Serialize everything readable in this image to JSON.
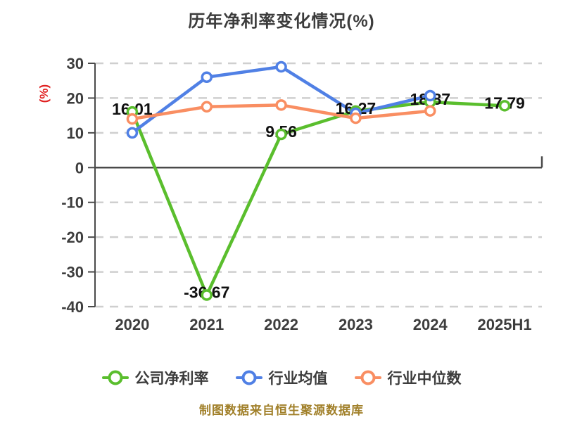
{
  "title": "历年净利率变化情况(%)",
  "y_axis_label": "(%)",
  "footer": "制图数据来自恒生聚源数据库",
  "colors": {
    "background": "#ffffff",
    "title": "#3c3c3c",
    "axis": "#4a4a4a",
    "tick_label": "#3d3d3d",
    "grid": "#cfcfcf",
    "y_axis_label": "#e02121",
    "point_label": "#111111",
    "legend_label": "#3c3c3c",
    "footer": "#a1802a"
  },
  "chart_data": {
    "type": "line",
    "title": "历年净利率变化情况(%)",
    "categories": [
      "2020",
      "2021",
      "2022",
      "2023",
      "2024",
      "2025H1"
    ],
    "series": [
      {
        "name": "公司净利率",
        "slug": "company-net-margin",
        "color": "#5abe2d",
        "values": [
          16.01,
          -36.67,
          9.56,
          16.27,
          18.87,
          17.79
        ],
        "point_labels": [
          "16.01",
          "-36.67",
          "9.56",
          "16.27",
          "18.87",
          "17.79"
        ]
      },
      {
        "name": "行业均值",
        "slug": "industry-average",
        "color": "#5080e5",
        "values": [
          10,
          26,
          29,
          15.6,
          20.7,
          null
        ],
        "point_labels": []
      },
      {
        "name": "行业中位数",
        "slug": "industry-median",
        "color": "#f98e62",
        "values": [
          14,
          17.5,
          18,
          14.2,
          16.3,
          null
        ],
        "point_labels": []
      }
    ],
    "ylabel": "(%)",
    "ylim": [
      -40,
      30
    ],
    "yticks": [
      30,
      20,
      10,
      0,
      -10,
      -20,
      -30,
      -40
    ],
    "grid": "horizontal dashed",
    "legend_position": "bottom",
    "note": "制图数据来自恒生聚源数据库"
  }
}
